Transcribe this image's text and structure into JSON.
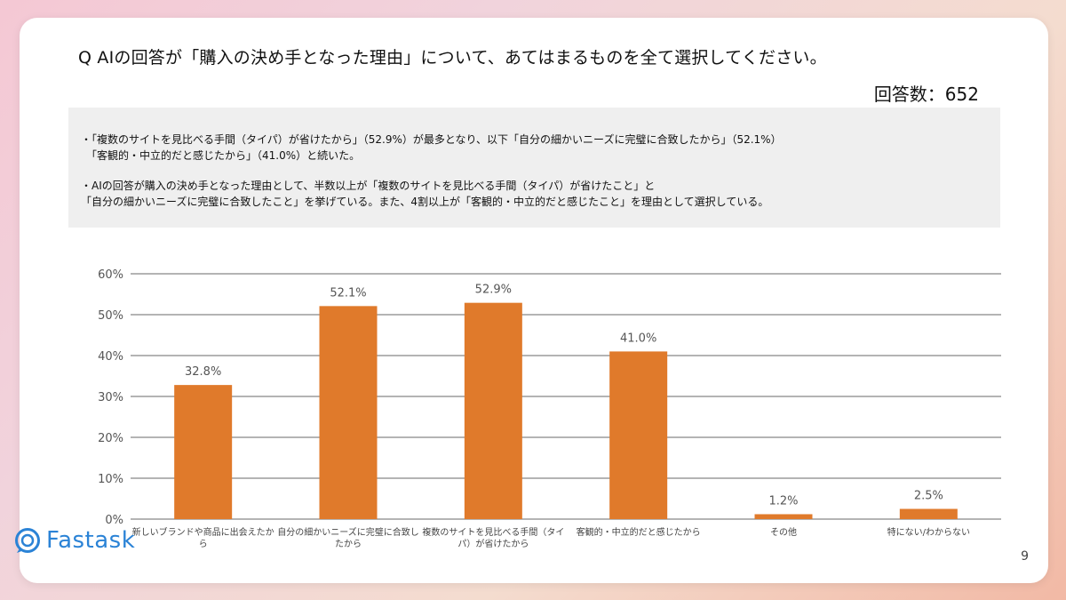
{
  "slide": {
    "question": "Q AIの回答が「購入の決め手となった理由」について、あてはまるものを全て選択してください。",
    "respondents": "回答数：652",
    "summary": {
      "p1_line1": "・「複数のサイトを見比べる手間（タイパ）が省けたから」（52.9%）が最多となり、以下「自分の細かいニーズに完璧に合致したから」（52.1%）",
      "p1_line2": "「客観的・中立的だと感じたから」（41.0%）と続いた。",
      "p2_line1": "・AIの回答が購入の決め手となった理由として、半数以上が「複数のサイトを見比べる手間（タイパ）が省けたこと」と",
      "p2_line2": "「自分の細かいニーズに完璧に合致したこと」を挙げている。また、4割以上が「客観的・中立的だと感じたこと」を理由として選択している。"
    },
    "logo_text": "Fastask",
    "page_number": "9"
  },
  "colors": {
    "bar": "#e07a2b",
    "grid": "#888888",
    "label": "#555555"
  },
  "chart_data": {
    "type": "bar",
    "categories": [
      [
        "新しいブランドや商品に出会えたか",
        "ら"
      ],
      [
        "自分の細かいニーズに完璧に合致し",
        "たから"
      ],
      [
        "複数のサイトを見比べる手間（タイ",
        "パ）が省けたから"
      ],
      [
        "客観的・中立的だと感じたから"
      ],
      [
        "その他"
      ],
      [
        "特にない/わからない"
      ]
    ],
    "values": [
      32.8,
      52.1,
      52.9,
      41.0,
      1.2,
      2.5
    ],
    "value_labels": [
      "32.8%",
      "52.1%",
      "52.9%",
      "41.0%",
      "1.2%",
      "2.5%"
    ],
    "yticks": [
      "0%",
      "10%",
      "20%",
      "30%",
      "40%",
      "50%",
      "60%"
    ],
    "ylim": [
      0,
      60
    ],
    "grid": true
  }
}
